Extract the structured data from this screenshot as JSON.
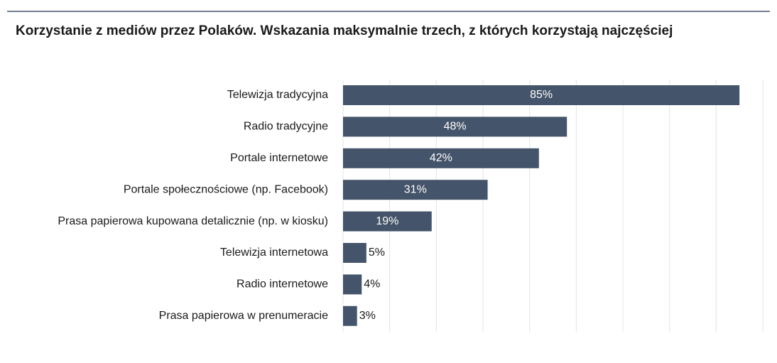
{
  "chart_data": {
    "type": "bar",
    "orientation": "horizontal",
    "title": "Korzystanie z mediów przez Polaków. Wskazania maksymalnie trzech, z których korzystają najczęściej",
    "categories": [
      "Telewizja tradycyjna",
      "Radio tradycyjne",
      "Portale internetowe",
      "Portale społecznościowe (np. Facebook)",
      "Prasa papierowa kupowana detalicznie (np. w kiosku)",
      "Telewizja internetowa",
      "Radio internetowe",
      "Prasa papierowa w prenumeracie"
    ],
    "values": [
      85,
      48,
      42,
      31,
      19,
      5,
      4,
      3
    ],
    "value_labels": [
      "85%",
      "48%",
      "42%",
      "31%",
      "19%",
      "5%",
      "4%",
      "3%"
    ],
    "color": "#44546a",
    "xlim": [
      0,
      90
    ],
    "xticks": [
      0,
      10,
      20,
      30,
      40,
      50,
      60,
      70,
      80,
      90
    ],
    "grid": true
  }
}
